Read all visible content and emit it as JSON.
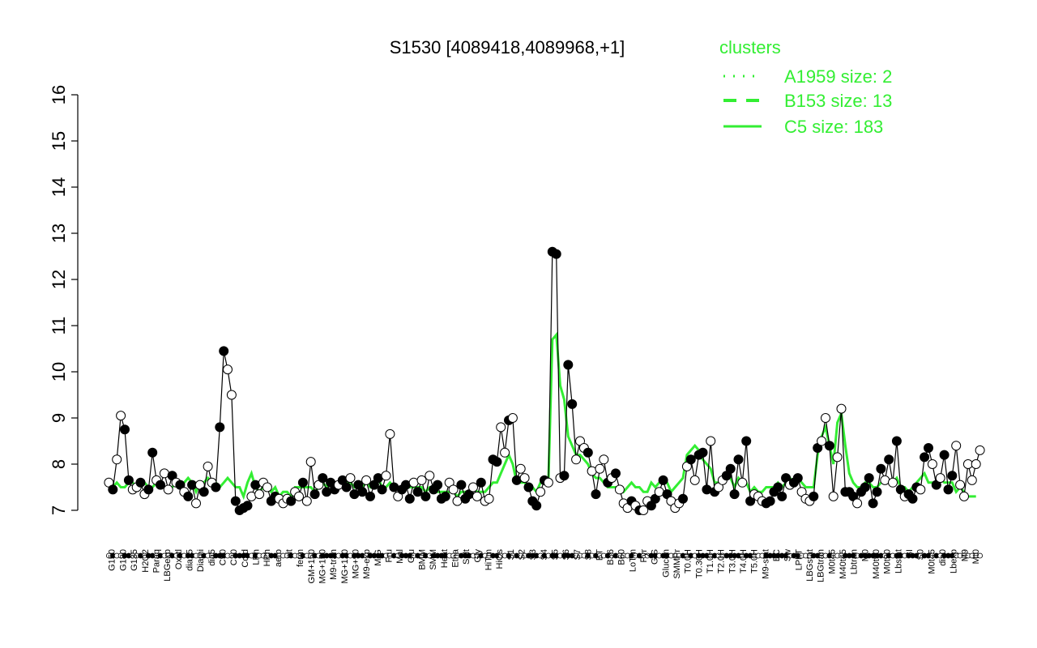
{
  "chart_data": {
    "type": "line",
    "title": "S1530 [4089418,4089968,+1]",
    "xlabel": "",
    "ylabel": "",
    "ylim": [
      7,
      16
    ],
    "yticks": [
      "7",
      "8",
      "9",
      "10",
      "11",
      "12",
      "13",
      "14",
      "15",
      "16"
    ],
    "x_tick_labels": [
      "G150",
      "G180",
      "G135",
      "H2O2",
      "Paraq",
      "LBGexp",
      "Oxctl",
      "dia15",
      "Diami",
      "dia5",
      "C90",
      "C30",
      "Cold",
      "LPh",
      "HPh",
      "aero",
      "nit",
      "ferm",
      "GM+150",
      "MG+150",
      "M9-tran",
      "MG+120",
      "MG+90",
      "M9-exp",
      "M/G",
      "Fru",
      "Mal",
      "Glu",
      "BMM",
      "SMM",
      "Heat",
      "Etha",
      "Salt",
      "Gly",
      "HiTm",
      "HiOs",
      "S1",
      "S2",
      "S3",
      "S4",
      "S5",
      "S6",
      "S7",
      "S8",
      "BT",
      "B36",
      "B60",
      "LoTm",
      "Pyr",
      "G/S",
      "Glucon",
      "SMMPr",
      "T0.0H",
      "T0.30H",
      "T1.0H",
      "T2.0H",
      "T3.0H",
      "T4.0H",
      "T5.0H",
      "M9-stat",
      "BC",
      "Sw",
      "LPhT",
      "LBGstat",
      "LBGtran",
      "M0t45",
      "M40t45",
      "Lbtran",
      "M0",
      "M40t90",
      "M0t90",
      "Lbstat",
      "BI",
      "S0",
      "M0t45",
      "dia0",
      "Lbexp",
      "M9",
      "Mt0"
    ],
    "legend": {
      "title": "clusters",
      "placement": "top-right",
      "entries": [
        {
          "label": "A1959 size: 2",
          "style": "dotted"
        },
        {
          "label": "B153 size: 13",
          "style": "dashed"
        },
        {
          "label": "C5 size: 183",
          "style": "solid"
        }
      ]
    },
    "series": [
      {
        "values": [
          7.6,
          7.45,
          8.1,
          9.05,
          8.75,
          7.65,
          7.45,
          7.5,
          7.6,
          7.35,
          7.45,
          8.25,
          7.65,
          7.55,
          7.8,
          7.45,
          7.75,
          7.6,
          7.55,
          7.4,
          7.3,
          7.55,
          7.15,
          7.55,
          7.4,
          7.95,
          7.6,
          7.5,
          8.8,
          10.45,
          10.05,
          9.5,
          7.2,
          7.0,
          7.05,
          7.1,
          7.3,
          7.55,
          7.35,
          7.6,
          7.5,
          7.2,
          7.3,
          7.25,
          7.15,
          7.25,
          7.2,
          7.4,
          7.3,
          7.6,
          7.2,
          8.05,
          7.35,
          7.55,
          7.7,
          7.4,
          7.6,
          7.45,
          7.55,
          7.65,
          7.5,
          7.7,
          7.35,
          7.55,
          7.4,
          7.65,
          7.3,
          7.55,
          7.7,
          7.45,
          7.75,
          8.65,
          7.5,
          7.3,
          7.45,
          7.55,
          7.25,
          7.6,
          7.4,
          7.65,
          7.3,
          7.75,
          7.45,
          7.55,
          7.25,
          7.3,
          7.6,
          7.45,
          7.2,
          7.55,
          7.25,
          7.35,
          7.5,
          7.3,
          7.6,
          7.2,
          7.25,
          8.1,
          8.05,
          8.8,
          8.25,
          8.95,
          9.0,
          7.65,
          7.9,
          7.7,
          7.5,
          7.2,
          7.1,
          7.4,
          7.65,
          7.6,
          12.6,
          12.55,
          7.7,
          7.75,
          10.15,
          9.3,
          8.1,
          8.5,
          8.35,
          8.25,
          7.85,
          7.35,
          7.9,
          8.1,
          7.6,
          7.7,
          7.8,
          7.45,
          7.15,
          7.05,
          7.2,
          7.1,
          7.0,
          7.0,
          7.2,
          7.1,
          7.25,
          7.4,
          7.65,
          7.35,
          7.2,
          7.05,
          7.15,
          7.25,
          7.95,
          8.1,
          7.65,
          8.2,
          8.25,
          7.45,
          8.5,
          7.4,
          7.5,
          7.65,
          7.75,
          7.9,
          7.35,
          8.1,
          7.6,
          8.5,
          7.2,
          7.35,
          7.3,
          7.2,
          7.15,
          7.2,
          7.4,
          7.5,
          7.3,
          7.7,
          7.55,
          7.6,
          7.7,
          7.4,
          7.25,
          7.2,
          7.3,
          8.35,
          8.5,
          9.0,
          8.4,
          7.3,
          8.15,
          9.2,
          7.4,
          7.4,
          7.3,
          7.15,
          7.4,
          7.5,
          7.7,
          7.15,
          7.4,
          7.9,
          7.65,
          8.1,
          7.6,
          8.5,
          7.45,
          7.3,
          7.35,
          7.25,
          7.5,
          7.45,
          8.15,
          8.35,
          8.0,
          7.55,
          7.7,
          8.2,
          7.45,
          7.75,
          8.4,
          7.55,
          7.3,
          8.0,
          7.65,
          8.0,
          8.3
        ],
        "filled": [
          0,
          1,
          0,
          0,
          1,
          1,
          0,
          0,
          1,
          0,
          1,
          1,
          0,
          1,
          0,
          0,
          1,
          0,
          1,
          0,
          1,
          1,
          0,
          0,
          1,
          0,
          0,
          1,
          1,
          1,
          0,
          0,
          1,
          1,
          1,
          1,
          0,
          1,
          0,
          0,
          0,
          1,
          1,
          0,
          0,
          0,
          1,
          0,
          0,
          1,
          0,
          0,
          1,
          0,
          1,
          1,
          1,
          1,
          0,
          1,
          1,
          0,
          1,
          1,
          1,
          0,
          1,
          1,
          1,
          1,
          0,
          0,
          1,
          0,
          1,
          1,
          1,
          0,
          1,
          0,
          1,
          0,
          1,
          1,
          1,
          1,
          0,
          0,
          0,
          1,
          1,
          1,
          0,
          0,
          1,
          0,
          0,
          1,
          1,
          0,
          0,
          1,
          0,
          1,
          0,
          0,
          1,
          1,
          1,
          0,
          1,
          0,
          1,
          1,
          0,
          1,
          1,
          1,
          0,
          0,
          0,
          1,
          0,
          1,
          0,
          0,
          1,
          0,
          1,
          0,
          0,
          0,
          1,
          0,
          1,
          0,
          0,
          1,
          1,
          0,
          1,
          1,
          0,
          0,
          0,
          1,
          0,
          1,
          0,
          1,
          1,
          1,
          0,
          1,
          0,
          0,
          1,
          1,
          1,
          1,
          0,
          1,
          1,
          0,
          0,
          0,
          1,
          1,
          1,
          1,
          1,
          1,
          0,
          1,
          1,
          0,
          0,
          0,
          1,
          1,
          0,
          0,
          1,
          0,
          0,
          0,
          1,
          1,
          1,
          0,
          1,
          1,
          1,
          1,
          1,
          1,
          0,
          1,
          0,
          1,
          1,
          0,
          1,
          1,
          1,
          0,
          1,
          1,
          0,
          1,
          0,
          1,
          1,
          1
        ]
      }
    ],
    "cluster_lines": {
      "C5": [
        7.6,
        7.5,
        7.6,
        7.5,
        7.5,
        7.6,
        7.6,
        7.5,
        7.5,
        7.6,
        7.5,
        7.5,
        7.6,
        7.6,
        7.5,
        7.5,
        7.5,
        7.6,
        7.5,
        7.6,
        7.7,
        7.6,
        7.4,
        7.6,
        7.6,
        7.7,
        7.6,
        7.6,
        7.5,
        7.6,
        7.7,
        7.6,
        7.5,
        7.5,
        7.3,
        7.6,
        7.8,
        7.5,
        7.4,
        7.5,
        7.5,
        7.4,
        7.5,
        7.3,
        7.4,
        7.4,
        7.3,
        7.5,
        7.5,
        7.5,
        7.5,
        7.5,
        7.4,
        7.5,
        7.6,
        7.5,
        7.6,
        7.4,
        7.5,
        7.6,
        7.6,
        7.6,
        7.5,
        7.6,
        7.5,
        7.6,
        7.5,
        7.6,
        7.7,
        7.5,
        7.5,
        7.6,
        7.5,
        7.5,
        7.5,
        7.6,
        7.5,
        7.5,
        7.5,
        7.5,
        7.4,
        7.5,
        7.5,
        7.4,
        7.4,
        7.4,
        7.4,
        7.4,
        7.3,
        7.4,
        7.4,
        7.4,
        7.5,
        7.4,
        7.4,
        7.4,
        7.5,
        7.6,
        7.6,
        7.8,
        8.0,
        8.2,
        8.0,
        7.6,
        7.6,
        7.6,
        7.5,
        7.5,
        7.4,
        7.6,
        7.7,
        7.6,
        10.7,
        10.8,
        9.7,
        9.4,
        8.6,
        8.4,
        8.2,
        8.2,
        8.1,
        8.0,
        7.8,
        7.7,
        7.7,
        7.6,
        7.5,
        7.5,
        7.5,
        7.5,
        7.4,
        7.5,
        7.6,
        7.5,
        7.5,
        7.4,
        7.4,
        7.6,
        7.5,
        7.6,
        7.7,
        7.6,
        7.4,
        7.5,
        7.6,
        7.7,
        8.2,
        8.3,
        8.4,
        8.3,
        8.1,
        8.0,
        7.9,
        7.6,
        7.6,
        7.7,
        7.8,
        7.7,
        7.5,
        7.7,
        7.6,
        7.6,
        7.4,
        7.5,
        7.4,
        7.4,
        7.5,
        7.5,
        7.5,
        7.6,
        7.5,
        7.6,
        7.7,
        7.6,
        7.7,
        7.6,
        7.5,
        7.5,
        7.5,
        8.2,
        8.6,
        8.8,
        8.4,
        8.0,
        8.9,
        9.1,
        8.4,
        7.8,
        7.6,
        7.5,
        7.5,
        7.6,
        7.6,
        7.5,
        7.5,
        7.6,
        7.6,
        7.6,
        7.6,
        7.7,
        7.5,
        7.5,
        7.4,
        7.5,
        7.6,
        7.7,
        7.8,
        7.6,
        7.6,
        7.6,
        7.7,
        7.6,
        7.6,
        7.6,
        7.4,
        7.5,
        7.4,
        7.3,
        7.3,
        7.3
      ]
    }
  }
}
